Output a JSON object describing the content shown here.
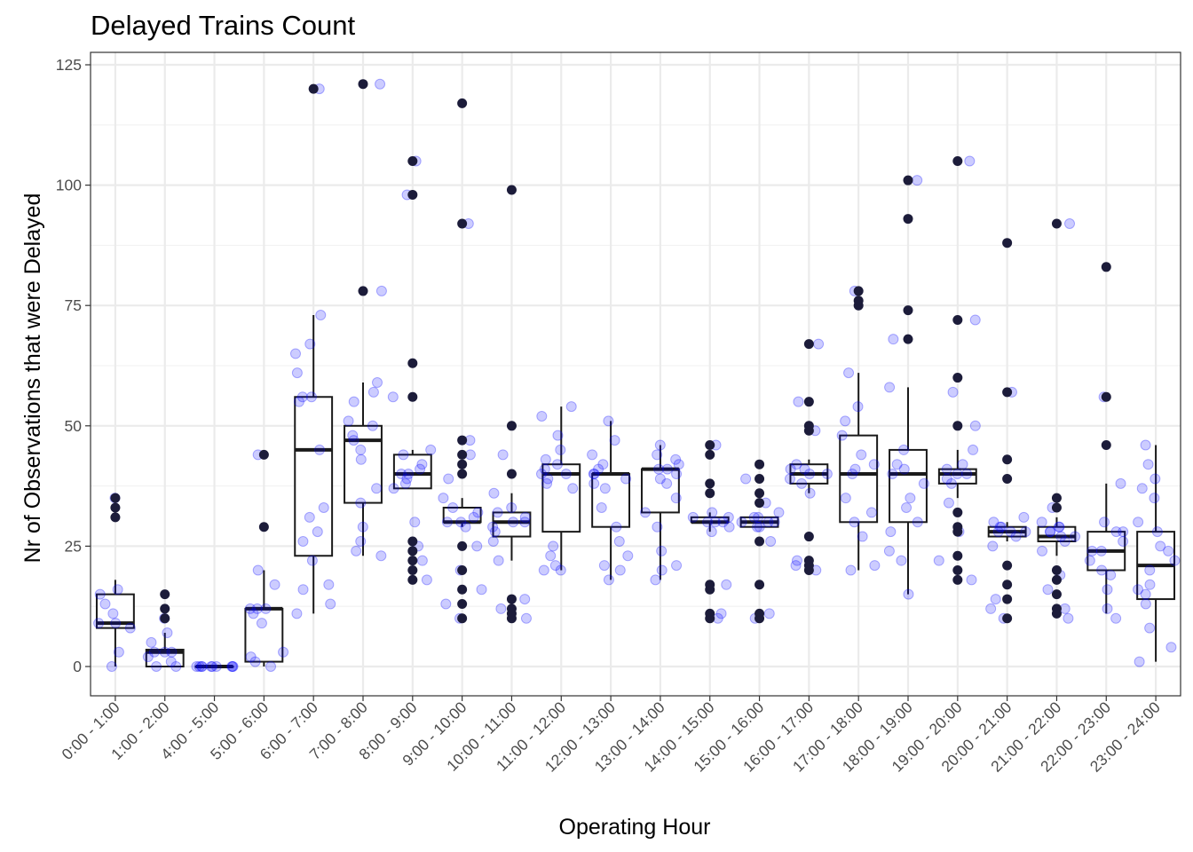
{
  "chart_data": {
    "type": "box",
    "title": "Delayed Trains Count",
    "xlabel": "Operating Hour",
    "ylabel": "Nr of Observations that were Delayed",
    "ylim": [
      -6,
      126
    ],
    "yticks": [
      0,
      25,
      50,
      75,
      100,
      125
    ],
    "grid": true,
    "categories": [
      "0:00 - 1:00",
      "1:00 - 2:00",
      "4:00 - 5:00",
      "5:00 - 6:00",
      "6:00 - 7:00",
      "7:00 - 8:00",
      "8:00 - 9:00",
      "9:00 - 10:00",
      "10:00 - 11:00",
      "11:00 - 12:00",
      "12:00 - 13:00",
      "13:00 - 14:00",
      "14:00 - 15:00",
      "15:00 - 16:00",
      "16:00 - 17:00",
      "17:00 - 18:00",
      "18:00 - 19:00",
      "19:00 - 20:00",
      "20:00 - 21:00",
      "21:00 - 22:00",
      "22:00 - 23:00",
      "23:00 - 24:00"
    ],
    "boxes": [
      {
        "q1": 8,
        "median": 9,
        "q3": 15,
        "whisker_low": 0,
        "whisker_high": 18,
        "outliers": [
          31,
          33,
          35
        ]
      },
      {
        "q1": 0,
        "median": 3,
        "q3": 3.5,
        "whisker_low": 0,
        "whisker_high": 7,
        "outliers": [
          10,
          12,
          15
        ]
      },
      {
        "q1": 0,
        "median": 0,
        "q3": 0,
        "whisker_low": 0,
        "whisker_high": 0,
        "outliers": []
      },
      {
        "q1": 1,
        "median": 12,
        "q3": 12,
        "whisker_low": 0,
        "whisker_high": 20,
        "outliers": [
          29,
          44
        ]
      },
      {
        "q1": 23,
        "median": 45,
        "q3": 56,
        "whisker_low": 11,
        "whisker_high": 73,
        "outliers": [
          120
        ]
      },
      {
        "q1": 34,
        "median": 47,
        "q3": 50,
        "whisker_low": 23,
        "whisker_high": 59,
        "outliers": [
          78,
          121
        ]
      },
      {
        "q1": 37,
        "median": 40,
        "q3": 44,
        "whisker_low": 37,
        "whisker_high": 45,
        "outliers": [
          18,
          20,
          22,
          24,
          26,
          56,
          63,
          98,
          105
        ]
      },
      {
        "q1": 30,
        "median": 30,
        "q3": 33,
        "whisker_low": 29,
        "whisker_high": 35,
        "outliers": [
          10,
          13,
          16,
          20,
          25,
          40,
          42,
          44,
          47,
          92,
          117
        ]
      },
      {
        "q1": 27,
        "median": 30,
        "q3": 32,
        "whisker_low": 22,
        "whisker_high": 36,
        "outliers": [
          10,
          11,
          12,
          14,
          40,
          50,
          99
        ]
      },
      {
        "q1": 28,
        "median": 40,
        "q3": 42,
        "whisker_low": 20,
        "whisker_high": 54,
        "outliers": []
      },
      {
        "q1": 29,
        "median": 40,
        "q3": 40,
        "whisker_low": 18,
        "whisker_high": 51,
        "outliers": []
      },
      {
        "q1": 32,
        "median": 41,
        "q3": 41,
        "whisker_low": 18,
        "whisker_high": 46,
        "outliers": []
      },
      {
        "q1": 30,
        "median": 30,
        "q3": 31,
        "whisker_low": 28,
        "whisker_high": 32,
        "outliers": [
          10,
          11,
          16,
          17,
          36,
          38,
          44,
          46
        ]
      },
      {
        "q1": 29,
        "median": 30,
        "q3": 31,
        "whisker_low": 29,
        "whisker_high": 31,
        "outliers": [
          10,
          11,
          17,
          26,
          34,
          36,
          39,
          42
        ]
      },
      {
        "q1": 38,
        "median": 40,
        "q3": 42,
        "whisker_low": 36,
        "whisker_high": 43,
        "outliers": [
          20,
          21,
          22,
          27,
          49,
          50,
          55,
          67
        ]
      },
      {
        "q1": 30,
        "median": 40,
        "q3": 48,
        "whisker_low": 20,
        "whisker_high": 61,
        "outliers": [
          75,
          76,
          78
        ]
      },
      {
        "q1": 30,
        "median": 40,
        "q3": 45,
        "whisker_low": 15,
        "whisker_high": 58,
        "outliers": [
          68,
          74,
          93,
          101
        ]
      },
      {
        "q1": 38,
        "median": 40,
        "q3": 41,
        "whisker_low": 35,
        "whisker_high": 45,
        "outliers": [
          18,
          20,
          23,
          28,
          29,
          32,
          50,
          60,
          72,
          105
        ]
      },
      {
        "q1": 27,
        "median": 28,
        "q3": 29,
        "whisker_low": 26,
        "whisker_high": 30,
        "outliers": [
          10,
          14,
          17,
          21,
          39,
          43,
          57,
          88
        ]
      },
      {
        "q1": 26,
        "median": 27,
        "q3": 29,
        "whisker_low": 23,
        "whisker_high": 31,
        "outliers": [
          11,
          12,
          15,
          18,
          20,
          33,
          35,
          92
        ]
      },
      {
        "q1": 20,
        "median": 24,
        "q3": 28,
        "whisker_low": 11,
        "whisker_high": 38,
        "outliers": [
          46,
          56,
          83
        ]
      },
      {
        "q1": 14,
        "median": 21,
        "q3": 28,
        "whisker_low": 1,
        "whisker_high": 46,
        "outliers": []
      }
    ],
    "jitter_points": [
      [
        35,
        16,
        15,
        13,
        11,
        9,
        9,
        8,
        3,
        0
      ],
      [
        0,
        0,
        1,
        2,
        3,
        3,
        3,
        5,
        7,
        10
      ],
      [
        0,
        0,
        0,
        0,
        0,
        0,
        0,
        0,
        0,
        0
      ],
      [
        0,
        1,
        2,
        3,
        9,
        11,
        12,
        12,
        12,
        17,
        20,
        44
      ],
      [
        11,
        13,
        16,
        17,
        22,
        26,
        28,
        31,
        33,
        45,
        55,
        56,
        56,
        61,
        65,
        67,
        73,
        120
      ],
      [
        23,
        24,
        26,
        29,
        34,
        37,
        43,
        45,
        47,
        48,
        50,
        51,
        55,
        57,
        59,
        78,
        121
      ],
      [
        18,
        22,
        25,
        30,
        37,
        38,
        39,
        40,
        40,
        41,
        42,
        44,
        45,
        56,
        98,
        105
      ],
      [
        10,
        13,
        16,
        20,
        25,
        29,
        30,
        30,
        31,
        32,
        33,
        35,
        39,
        44,
        47,
        92
      ],
      [
        10,
        12,
        14,
        22,
        26,
        28,
        29,
        30,
        30,
        31,
        32,
        33,
        36,
        44
      ],
      [
        20,
        20,
        21,
        23,
        25,
        37,
        38,
        39,
        40,
        40,
        41,
        42,
        43,
        45,
        48,
        52,
        54
      ],
      [
        18,
        20,
        21,
        23,
        26,
        29,
        33,
        37,
        38,
        39,
        40,
        40,
        41,
        42,
        44,
        47,
        51
      ],
      [
        18,
        20,
        21,
        24,
        29,
        32,
        35,
        38,
        39,
        40,
        41,
        41,
        42,
        43,
        44,
        46
      ],
      [
        10,
        11,
        17,
        28,
        29,
        30,
        30,
        30,
        31,
        31,
        32,
        46
      ],
      [
        10,
        11,
        26,
        29,
        29,
        30,
        30,
        30,
        31,
        31,
        32,
        34,
        39
      ],
      [
        20,
        21,
        22,
        36,
        38,
        39,
        40,
        40,
        41,
        41,
        42,
        49,
        55,
        67
      ],
      [
        20,
        21,
        27,
        30,
        32,
        35,
        40,
        41,
        42,
        44,
        48,
        51,
        54,
        61,
        78
      ],
      [
        15,
        22,
        24,
        28,
        30,
        33,
        35,
        38,
        40,
        41,
        42,
        45,
        58,
        68,
        101
      ],
      [
        18,
        22,
        28,
        34,
        38,
        39,
        40,
        40,
        41,
        42,
        45,
        50,
        57,
        72,
        105
      ],
      [
        10,
        12,
        14,
        25,
        27,
        28,
        28,
        28,
        29,
        29,
        30,
        31,
        57
      ],
      [
        10,
        12,
        16,
        19,
        24,
        26,
        27,
        27,
        28,
        28,
        29,
        29,
        30,
        33,
        92
      ],
      [
        10,
        12,
        16,
        19,
        20,
        22,
        24,
        24,
        26,
        28,
        28,
        30,
        38,
        56
      ],
      [
        1,
        4,
        8,
        13,
        15,
        16,
        17,
        20,
        22,
        24,
        25,
        28,
        30,
        35,
        37,
        39,
        42,
        46
      ]
    ],
    "colors": {
      "jitter": "#0000ff",
      "box_line": "#1a1a1a",
      "outlier": "#1c1c3a",
      "grid_major": "#ebebeb",
      "grid_minor": "#f2f2f2",
      "panel_border": "#333333",
      "tick_text": "#4d4d4d"
    }
  }
}
